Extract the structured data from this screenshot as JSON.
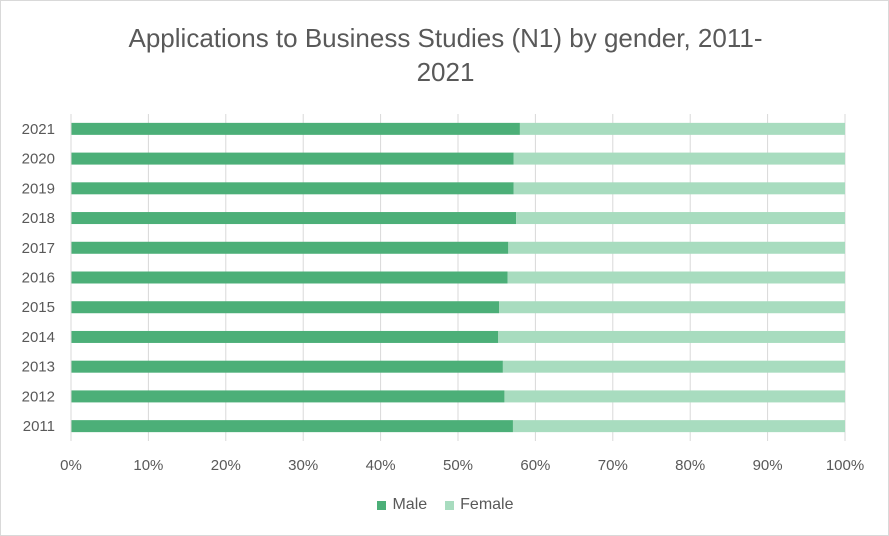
{
  "chart_data": {
    "type": "bar",
    "orientation": "horizontal",
    "stacked_percent": true,
    "title": "Applications to Business Studies (N1) by gender, 2011-2021",
    "categories": [
      "2021",
      "2020",
      "2019",
      "2018",
      "2017",
      "2016",
      "2015",
      "2014",
      "2013",
      "2012",
      "2011"
    ],
    "series": [
      {
        "name": "Male",
        "color": "#4caf78",
        "values": [
          58.0,
          57.2,
          57.2,
          57.5,
          56.5,
          56.4,
          55.3,
          55.2,
          55.8,
          56.0,
          57.1
        ]
      },
      {
        "name": "Female",
        "color": "#a8dcbf",
        "values": [
          42.0,
          42.8,
          42.8,
          42.5,
          43.5,
          43.6,
          44.7,
          44.8,
          44.2,
          44.0,
          42.9
        ]
      }
    ],
    "xaxis_ticks": [
      "0%",
      "10%",
      "20%",
      "30%",
      "40%",
      "50%",
      "60%",
      "70%",
      "80%",
      "90%",
      "100%"
    ],
    "xlim": [
      0,
      100
    ],
    "grid": true,
    "legend_position": "bottom"
  }
}
